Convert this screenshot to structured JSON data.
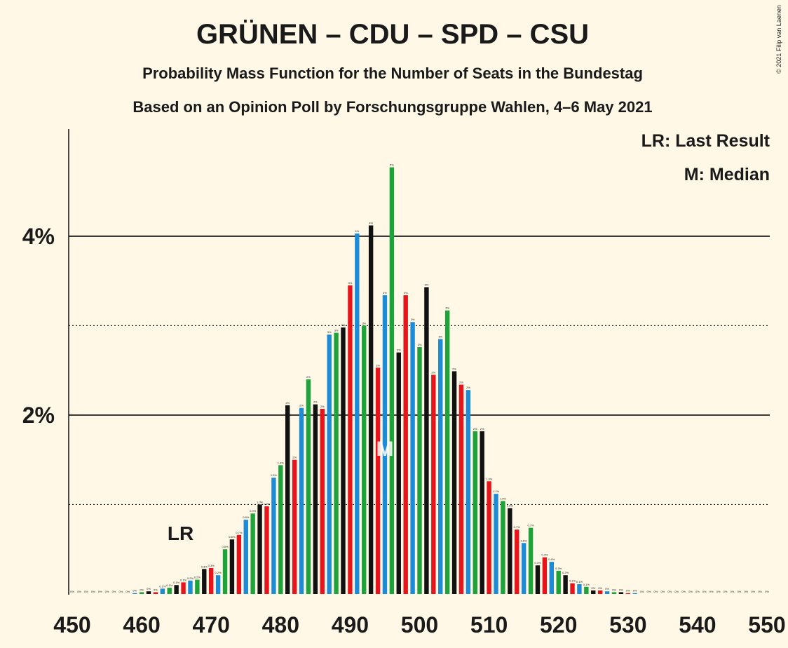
{
  "chart_data": {
    "type": "bar",
    "title": "GRÜNEN – CDU – SPD – CSU",
    "subtitle": "Probability Mass Function for the Number of Seats in the Bundestag",
    "subtitle2": "Based on an Opinion Poll by Forschungsgruppe Wahlen, 4–6 May 2021",
    "copyright": "© 2021 Filip van Laenen",
    "legend": [
      "LR: Last Result",
      "M: Median"
    ],
    "annotations": [
      {
        "text": "LR",
        "x": 466
      },
      {
        "text": "M",
        "x": 495
      }
    ],
    "x": [
      450,
      451,
      452,
      453,
      454,
      455,
      456,
      457,
      458,
      459,
      460,
      461,
      462,
      463,
      464,
      465,
      466,
      467,
      468,
      469,
      470,
      471,
      472,
      473,
      474,
      475,
      476,
      477,
      478,
      479,
      480,
      481,
      482,
      483,
      484,
      485,
      486,
      487,
      488,
      489,
      490,
      491,
      492,
      493,
      494,
      495,
      496,
      497,
      498,
      499,
      500,
      501,
      502,
      503,
      504,
      505,
      506,
      507,
      508,
      509,
      510,
      511,
      512,
      513,
      514,
      515,
      516,
      517,
      518,
      519,
      520,
      521,
      522,
      523,
      524,
      525,
      526,
      527,
      528,
      529,
      530,
      531,
      532,
      533,
      534,
      535,
      536,
      537,
      538,
      539,
      540,
      541,
      542,
      543,
      544,
      545,
      546,
      547,
      548,
      549,
      550
    ],
    "values": [
      0,
      0,
      0,
      0,
      0,
      0,
      0,
      0,
      0,
      0.01,
      0.02,
      0.03,
      0.02,
      0.06,
      0.07,
      0.1,
      0.13,
      0.15,
      0.16,
      0.28,
      0.29,
      0.21,
      0.5,
      0.61,
      0.66,
      0.83,
      0.9,
      1.0,
      0.98,
      1.3,
      1.44,
      2.11,
      1.5,
      2.08,
      2.4,
      2.12,
      2.07,
      2.9,
      2.92,
      2.98,
      3.45,
      4.03,
      3.0,
      4.12,
      2.53,
      3.34,
      4.77,
      2.7,
      3.34,
      3.04,
      2.76,
      3.43,
      2.45,
      2.85,
      3.17,
      2.49,
      2.34,
      2.28,
      1.82,
      1.82,
      1.26,
      1.12,
      1.04,
      0.96,
      0.72,
      0.57,
      0.74,
      0.32,
      0.41,
      0.36,
      0.26,
      0.21,
      0.12,
      0.11,
      0.08,
      0.04,
      0.04,
      0.03,
      0.02,
      0.02,
      0.01,
      0.01,
      0,
      0,
      0,
      0,
      0,
      0,
      0,
      0,
      0,
      0,
      0,
      0,
      0,
      0,
      0,
      0,
      0,
      0,
      0
    ],
    "value_labels": [
      "0%",
      "0%",
      "0%",
      "0%",
      "0%",
      "0%",
      "0%",
      "0%",
      "0%",
      "0%",
      "0%",
      "0%",
      "0%",
      "0.1%",
      "0.1%",
      "0.1%",
      "0.1%",
      "0.2%",
      "0.2%",
      "0.3%",
      "0.3%",
      "0.2%",
      "0.5%",
      "0.6%",
      "0.7%",
      "0.8%",
      "0.9%",
      "1.0%",
      "1.0%",
      "1.3%",
      "1.4%",
      "2%",
      "2%",
      "2%",
      "2%",
      "2%",
      "2%",
      "3%",
      "3%",
      "3%",
      "3%",
      "4%",
      "3%",
      "4%",
      "3%",
      "3%",
      "5%",
      "3%",
      "3%",
      "3%",
      "3%",
      "3%",
      "2%",
      "3%",
      "3%",
      "2%",
      "2%",
      "2%",
      "2%",
      "2%",
      "1.3%",
      "1.1%",
      "1.0%",
      "1.0%",
      "0.7%",
      "0.6%",
      "0.7%",
      "0.3%",
      "0.4%",
      "0.4%",
      "0.3%",
      "0.2%",
      "0.1%",
      "0.1%",
      "0.1%",
      "0%",
      "0%",
      "0%",
      "0%",
      "0%",
      "0%",
      "0%",
      "0%",
      "0%",
      "0%",
      "0%",
      "0%",
      "0%",
      "0%",
      "0%",
      "0%",
      "0%",
      "0%",
      "0%",
      "0%",
      "0%",
      "0%",
      "0%",
      "0%",
      "0%",
      "0%"
    ],
    "color_cycle": [
      "#e8141b",
      "#1e8bd6",
      "#1ea33a",
      "#111111"
    ],
    "xlim": [
      450,
      550
    ],
    "xticks": [
      450,
      460,
      470,
      480,
      490,
      500,
      510,
      520,
      530,
      540,
      550
    ],
    "ylim": [
      0,
      5.19
    ],
    "yticks": [
      {
        "value": 2,
        "label": "2%"
      },
      {
        "value": 4,
        "label": "4%"
      }
    ],
    "minor_gridlines": [
      1,
      3
    ],
    "grid": true
  }
}
